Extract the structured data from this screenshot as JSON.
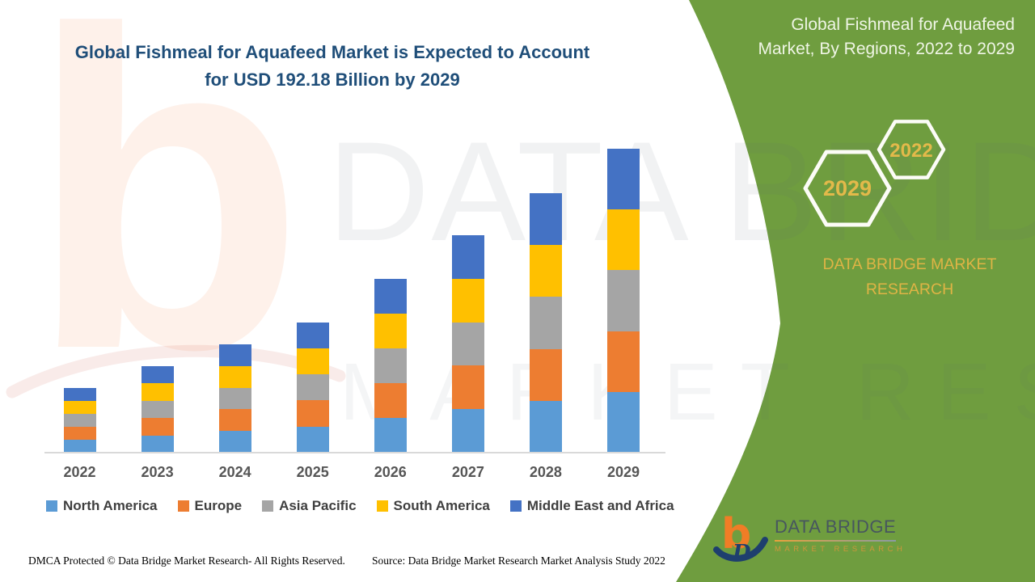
{
  "header": {
    "title_line1": "Global Fishmeal for Aquafeed Market is Expected to Account",
    "title_line2": "for USD 192.18 Billion by 2029"
  },
  "side_panel": {
    "heading": "Global Fishmeal for Aquafeed Market, By Regions, 2022 to 2029",
    "hexagon_labels": [
      "2029",
      "2022"
    ],
    "brand": "DATA BRIDGE MARKET RESEARCH"
  },
  "logo": {
    "title": "DATA BRIDGE",
    "subtitle": "MARKET RESEARCH"
  },
  "watermark": {
    "text_primary": "DATA BRIDGE",
    "text_secondary": "MARKET RESEARCH",
    "logo_glyph": "b"
  },
  "footer": {
    "left": "DMCA Protected © Data Bridge Market Research- All Rights Reserved.",
    "right": "Source: Data Bridge Market Research Market Analysis Study 2022"
  },
  "colors": {
    "panel_green": "#6F9D3F",
    "title_navy": "#1F4E79",
    "gold_accent": "#E0B544",
    "axis_line": "#D9D9D9"
  },
  "chart_data": {
    "type": "bar",
    "stacked": true,
    "title": "Global Fishmeal for Aquafeed Market, By Regions, 2022 to 2029",
    "unit": "USD Billion",
    "categories": [
      "2022",
      "2023",
      "2024",
      "2025",
      "2026",
      "2027",
      "2028",
      "2029"
    ],
    "series": [
      {
        "name": "North America",
        "color": "#5B9BD5",
        "values": [
          8.2,
          11.0,
          13.7,
          16.5,
          22.0,
          27.5,
          32.8,
          38.44
        ]
      },
      {
        "name": "Europe",
        "color": "#ED7D31",
        "values": [
          8.2,
          11.0,
          13.7,
          16.5,
          22.0,
          27.5,
          32.8,
          38.44
        ]
      },
      {
        "name": "Asia Pacific",
        "color": "#A5A5A5",
        "values": [
          8.2,
          11.0,
          13.7,
          16.5,
          22.0,
          27.5,
          32.8,
          38.44
        ]
      },
      {
        "name": "South America",
        "color": "#FFC000",
        "values": [
          8.2,
          11.0,
          13.7,
          16.5,
          22.0,
          27.5,
          32.8,
          38.44
        ]
      },
      {
        "name": "Middle East and Africa",
        "color": "#4472C4",
        "values": [
          8.2,
          11.0,
          13.7,
          16.5,
          22.0,
          27.5,
          32.8,
          38.44
        ]
      }
    ],
    "totals": [
      41.0,
      55.0,
      68.5,
      82.5,
      110.0,
      137.5,
      164.0,
      192.18
    ],
    "ylim": [
      0,
      200
    ],
    "grid": false,
    "y_axis_visible": false,
    "legend_position": "bottom"
  }
}
